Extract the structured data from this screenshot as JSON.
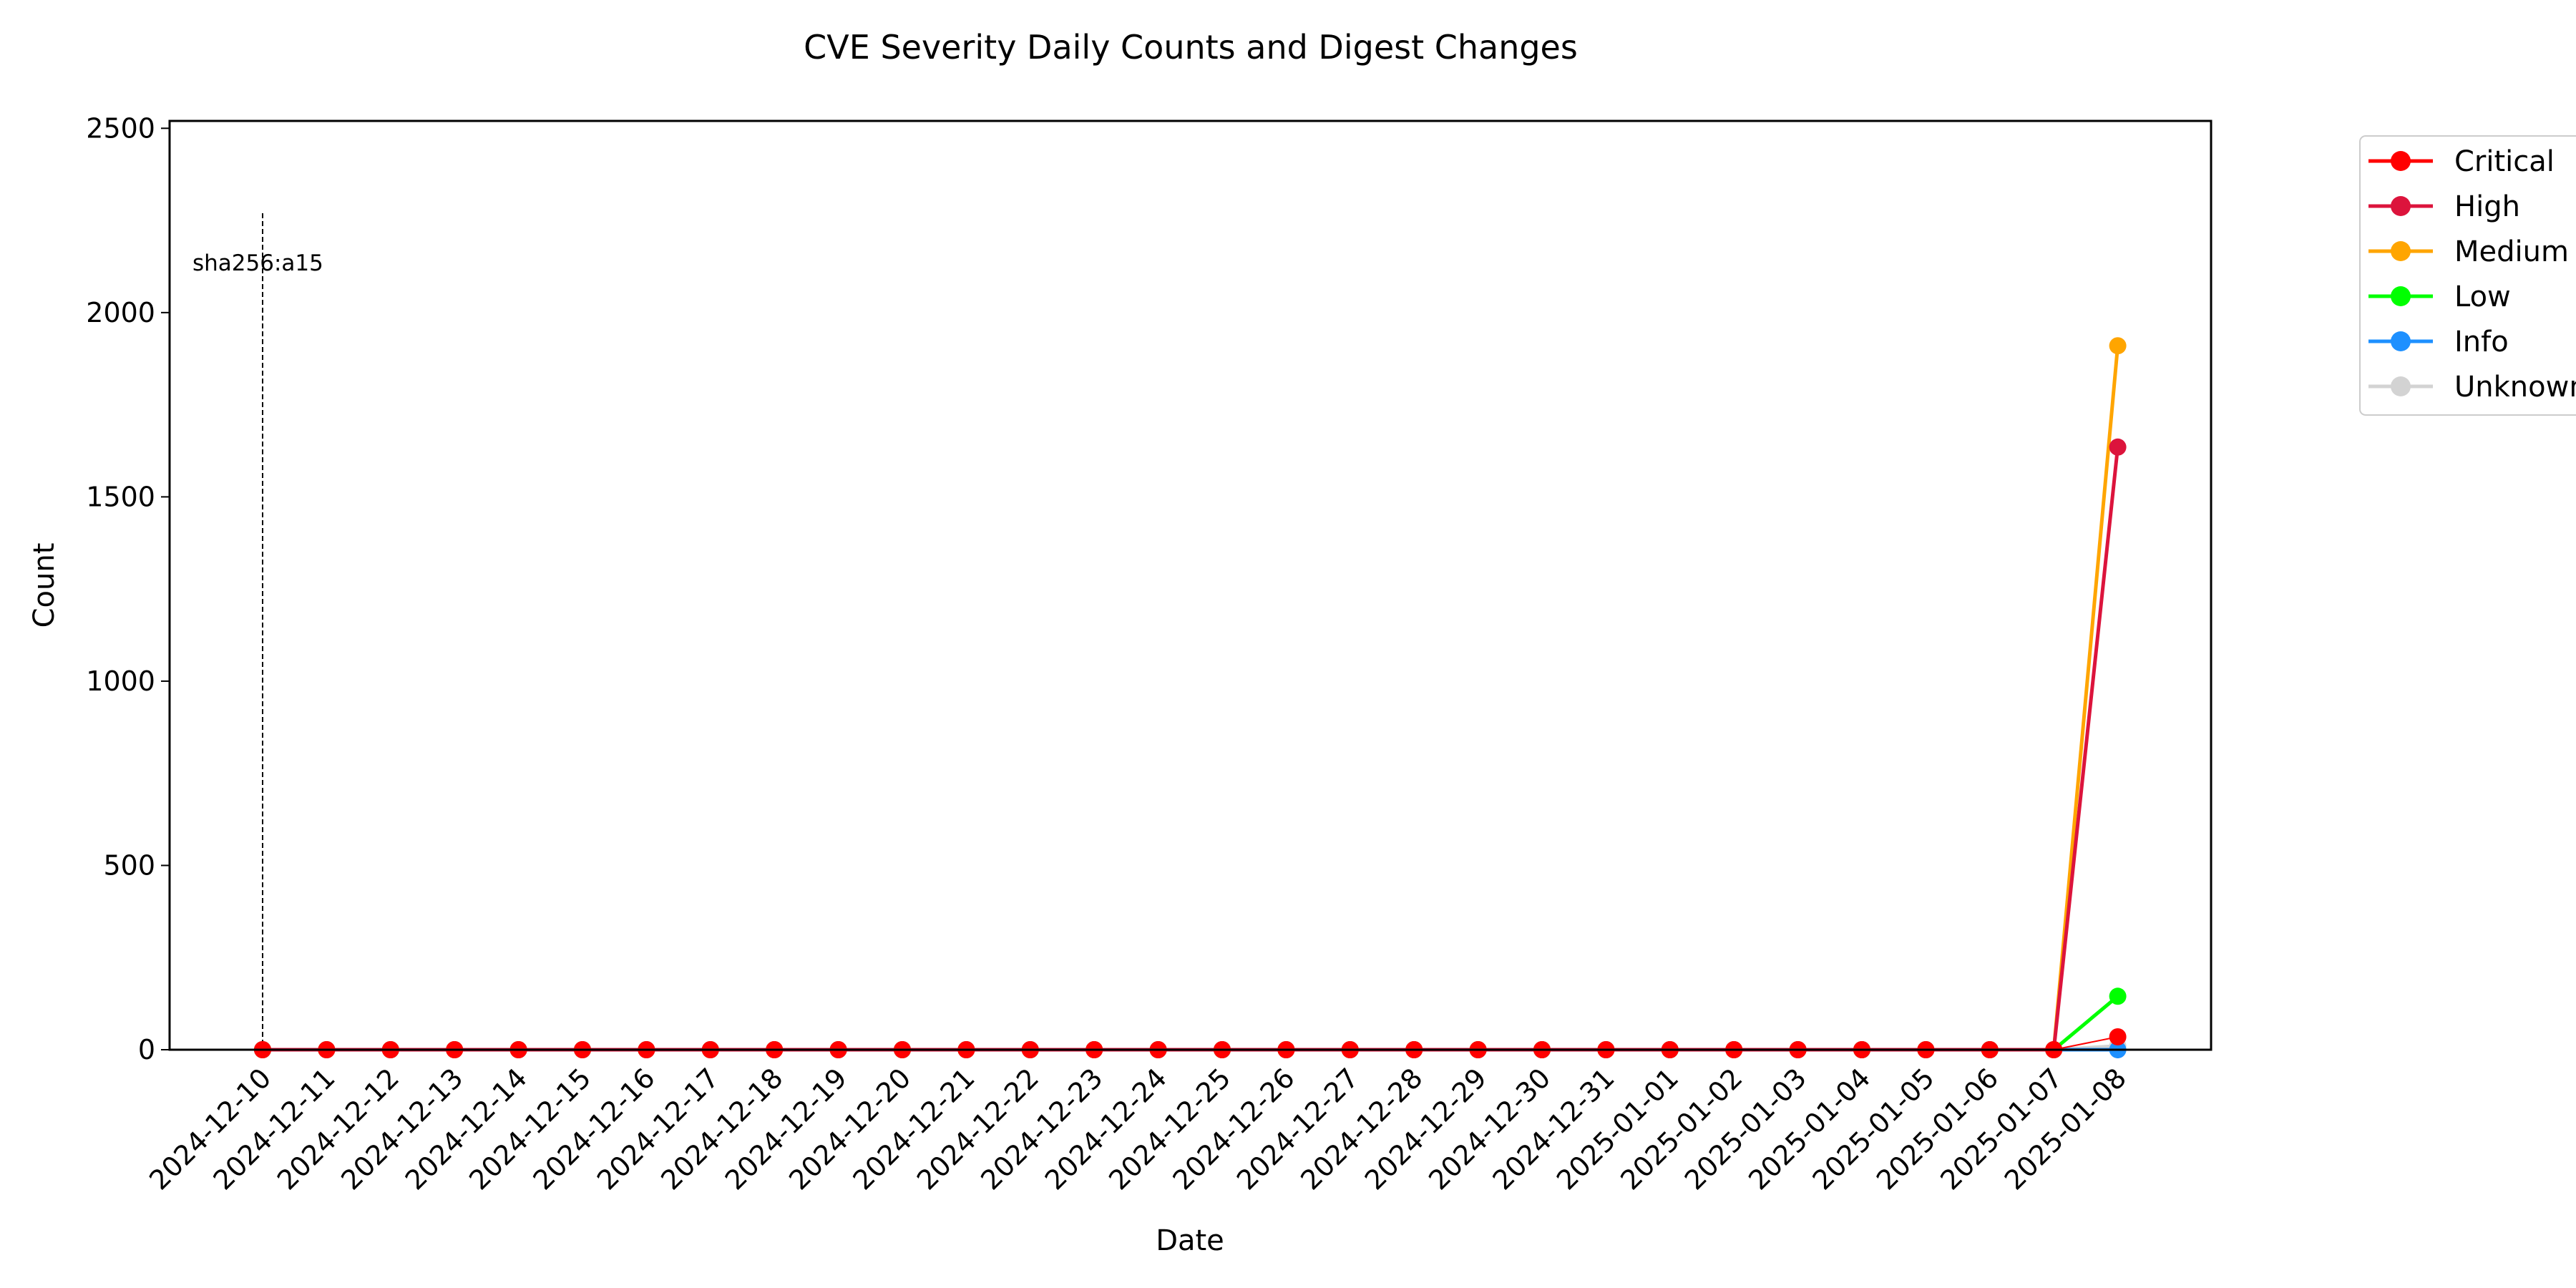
{
  "chart_data": {
    "type": "line",
    "title": "CVE Severity Daily Counts and Digest Changes",
    "xlabel": "Date",
    "ylabel": "Count",
    "ylim": [
      0,
      2520
    ],
    "yticks": [
      0,
      500,
      1000,
      1500,
      2000,
      2500
    ],
    "grid": false,
    "legend_position": "outside-top-right",
    "x": [
      "2024-12-10",
      "2024-12-11",
      "2024-12-12",
      "2024-12-13",
      "2024-12-14",
      "2024-12-15",
      "2024-12-16",
      "2024-12-17",
      "2024-12-18",
      "2024-12-19",
      "2024-12-20",
      "2024-12-21",
      "2024-12-22",
      "2024-12-23",
      "2024-12-24",
      "2024-12-25",
      "2024-12-26",
      "2024-12-27",
      "2024-12-28",
      "2024-12-29",
      "2024-12-30",
      "2024-12-31",
      "2025-01-01",
      "2025-01-02",
      "2025-01-03",
      "2025-01-04",
      "2025-01-05",
      "2025-01-06",
      "2025-01-07",
      "2025-01-08"
    ],
    "series": [
      {
        "name": "Critical",
        "color": "#ff0000",
        "width": 2,
        "values": [
          0,
          0,
          0,
          0,
          0,
          0,
          0,
          0,
          0,
          0,
          0,
          0,
          0,
          0,
          0,
          0,
          0,
          0,
          0,
          0,
          0,
          0,
          0,
          0,
          0,
          0,
          0,
          0,
          0,
          35
        ]
      },
      {
        "name": "High",
        "color": "#dc143c",
        "width": 5,
        "values": [
          0,
          0,
          0,
          0,
          0,
          0,
          0,
          0,
          0,
          0,
          0,
          0,
          0,
          0,
          0,
          0,
          0,
          0,
          0,
          0,
          0,
          0,
          0,
          0,
          0,
          0,
          0,
          0,
          0,
          1635
        ]
      },
      {
        "name": "Medium",
        "color": "#ffa500",
        "width": 5,
        "values": [
          0,
          0,
          0,
          0,
          0,
          0,
          0,
          0,
          0,
          0,
          0,
          0,
          0,
          0,
          0,
          0,
          0,
          0,
          0,
          0,
          0,
          0,
          0,
          0,
          0,
          0,
          0,
          0,
          0,
          1910
        ]
      },
      {
        "name": "Low",
        "color": "#00ff00",
        "width": 5,
        "values": [
          0,
          0,
          0,
          0,
          0,
          0,
          0,
          0,
          0,
          0,
          0,
          0,
          0,
          0,
          0,
          0,
          0,
          0,
          0,
          0,
          0,
          0,
          0,
          0,
          0,
          0,
          0,
          0,
          0,
          145
        ]
      },
      {
        "name": "Info",
        "color": "#1e90ff",
        "width": 5,
        "values": [
          0,
          0,
          0,
          0,
          0,
          0,
          0,
          0,
          0,
          0,
          0,
          0,
          0,
          0,
          0,
          0,
          0,
          0,
          0,
          0,
          0,
          0,
          0,
          0,
          0,
          0,
          0,
          0,
          0,
          0
        ]
      },
      {
        "name": "Unknown",
        "color": "#d3d3d3",
        "width": 5,
        "values": [
          0,
          0,
          0,
          0,
          0,
          0,
          0,
          0,
          0,
          0,
          0,
          0,
          0,
          0,
          0,
          0,
          0,
          0,
          0,
          0,
          0,
          0,
          0,
          0,
          0,
          0,
          0,
          0,
          0,
          10
        ]
      }
    ],
    "annotations": [
      {
        "x": "2024-12-10",
        "label": "sha256:a15",
        "style": "dashed-vertical-line"
      }
    ]
  }
}
